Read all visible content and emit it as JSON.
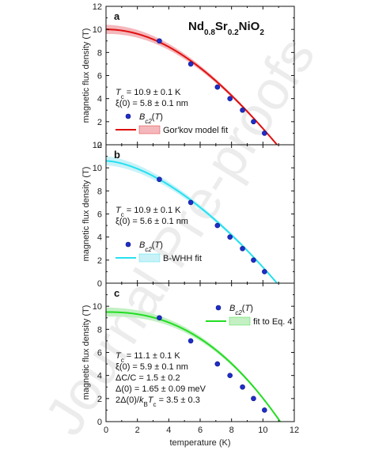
{
  "figure_title": {
    "parts": [
      {
        "t": "Nd",
        "sub": false
      },
      {
        "t": "0.8",
        "sub": true
      },
      {
        "t": "Sr",
        "sub": false
      },
      {
        "t": "0.2",
        "sub": true
      },
      {
        "t": "NiO",
        "sub": false
      },
      {
        "t": "2",
        "sub": true
      }
    ]
  },
  "watermark": "Journal Pre-proofs",
  "colors": {
    "points": "#1f2ec8",
    "panel_a_fit": "#e01010",
    "panel_a_band": "#f4b8bc",
    "panel_b_fit": "#26e0f0",
    "panel_b_band": "#c9f2f8",
    "panel_c_fit": "#22dd22",
    "panel_c_band": "#c4f0c4"
  },
  "chart_data": [
    {
      "type": "scatter",
      "panel_label": "a",
      "xlabel": "",
      "ylabel": "magnetic flux density (T)",
      "xlim": [
        0,
        12
      ],
      "ylim": [
        0,
        12
      ],
      "x_ticks": [],
      "y_ticks": [
        0,
        2,
        4,
        6,
        8,
        10,
        12
      ],
      "series": [
        {
          "name": "Bc2(T)",
          "kind": "points",
          "x": [
            3.4,
            5.4,
            7.1,
            7.9,
            8.7,
            9.4,
            10.1
          ],
          "y": [
            9.0,
            7.0,
            5.0,
            4.0,
            3.0,
            2.0,
            1.0
          ]
        },
        {
          "name": "Gor'kov model fit",
          "kind": "fit",
          "Tc": 10.9,
          "B0": 10.0,
          "model": "gorkov"
        }
      ],
      "legend": [
        {
          "kind": "point",
          "label": "Bc2(T)"
        },
        {
          "kind": "fit",
          "label": "Gor'kov model fit"
        }
      ],
      "annotations": [
        "Tc = 10.9 ± 0.1 K",
        "ξ(0) = 5.8 ± 0.1 nm"
      ]
    },
    {
      "type": "scatter",
      "panel_label": "b",
      "xlabel": "",
      "ylabel": "magnetic flux density (T)",
      "xlim": [
        0,
        12
      ],
      "ylim": [
        0,
        12
      ],
      "x_ticks": [],
      "y_ticks": [
        0,
        2,
        4,
        6,
        8,
        10,
        12
      ],
      "series": [
        {
          "name": "Bc2(T)",
          "kind": "points",
          "x": [
            3.4,
            5.4,
            7.1,
            7.9,
            8.7,
            9.4,
            10.1
          ],
          "y": [
            9.0,
            7.0,
            5.0,
            4.0,
            3.0,
            2.0,
            1.0
          ]
        },
        {
          "name": "B-WHH fit",
          "kind": "fit",
          "Tc": 10.9,
          "B0": 10.6,
          "model": "whh"
        }
      ],
      "legend": [
        {
          "kind": "point",
          "label": "Bc2(T)"
        },
        {
          "kind": "fit",
          "label": "B-WHH fit"
        }
      ],
      "annotations": [
        "Tc = 10.9 ± 0.1 K",
        "ξ(0) = 5.6 ± 0.1 nm"
      ]
    },
    {
      "type": "scatter",
      "panel_label": "c",
      "xlabel": "temperature (K)",
      "ylabel": "magnetic flux density (T)",
      "xlim": [
        0,
        12
      ],
      "ylim": [
        0,
        12
      ],
      "x_ticks": [
        0,
        2,
        4,
        6,
        8,
        10,
        12
      ],
      "y_ticks": [
        0,
        2,
        4,
        6,
        8,
        10
      ],
      "series": [
        {
          "name": "Bc2(T)",
          "kind": "points",
          "x": [
            3.4,
            5.4,
            7.1,
            7.9,
            8.7,
            9.4,
            10.1
          ],
          "y": [
            9.0,
            7.0,
            5.0,
            4.0,
            3.0,
            2.0,
            1.0
          ]
        },
        {
          "name": "fit to Eq. 4",
          "kind": "fit",
          "Tc": 11.1,
          "B0": 9.5,
          "model": "eq4"
        }
      ],
      "legend": [
        {
          "kind": "point",
          "label": "Bc2(T)"
        },
        {
          "kind": "fit",
          "label": "fit to Eq. 4"
        }
      ],
      "annotations": [
        "Tc = 11.1 ± 0.1 K",
        "ξ(0) = 5.9 ± 0.1 nm",
        "ΔC/C = 1.5 ± 0.2",
        "Δ(0) = 1.65 ± 0.09 meV",
        "2Δ(0)/kBTc = 3.5 ± 0.3"
      ]
    }
  ]
}
